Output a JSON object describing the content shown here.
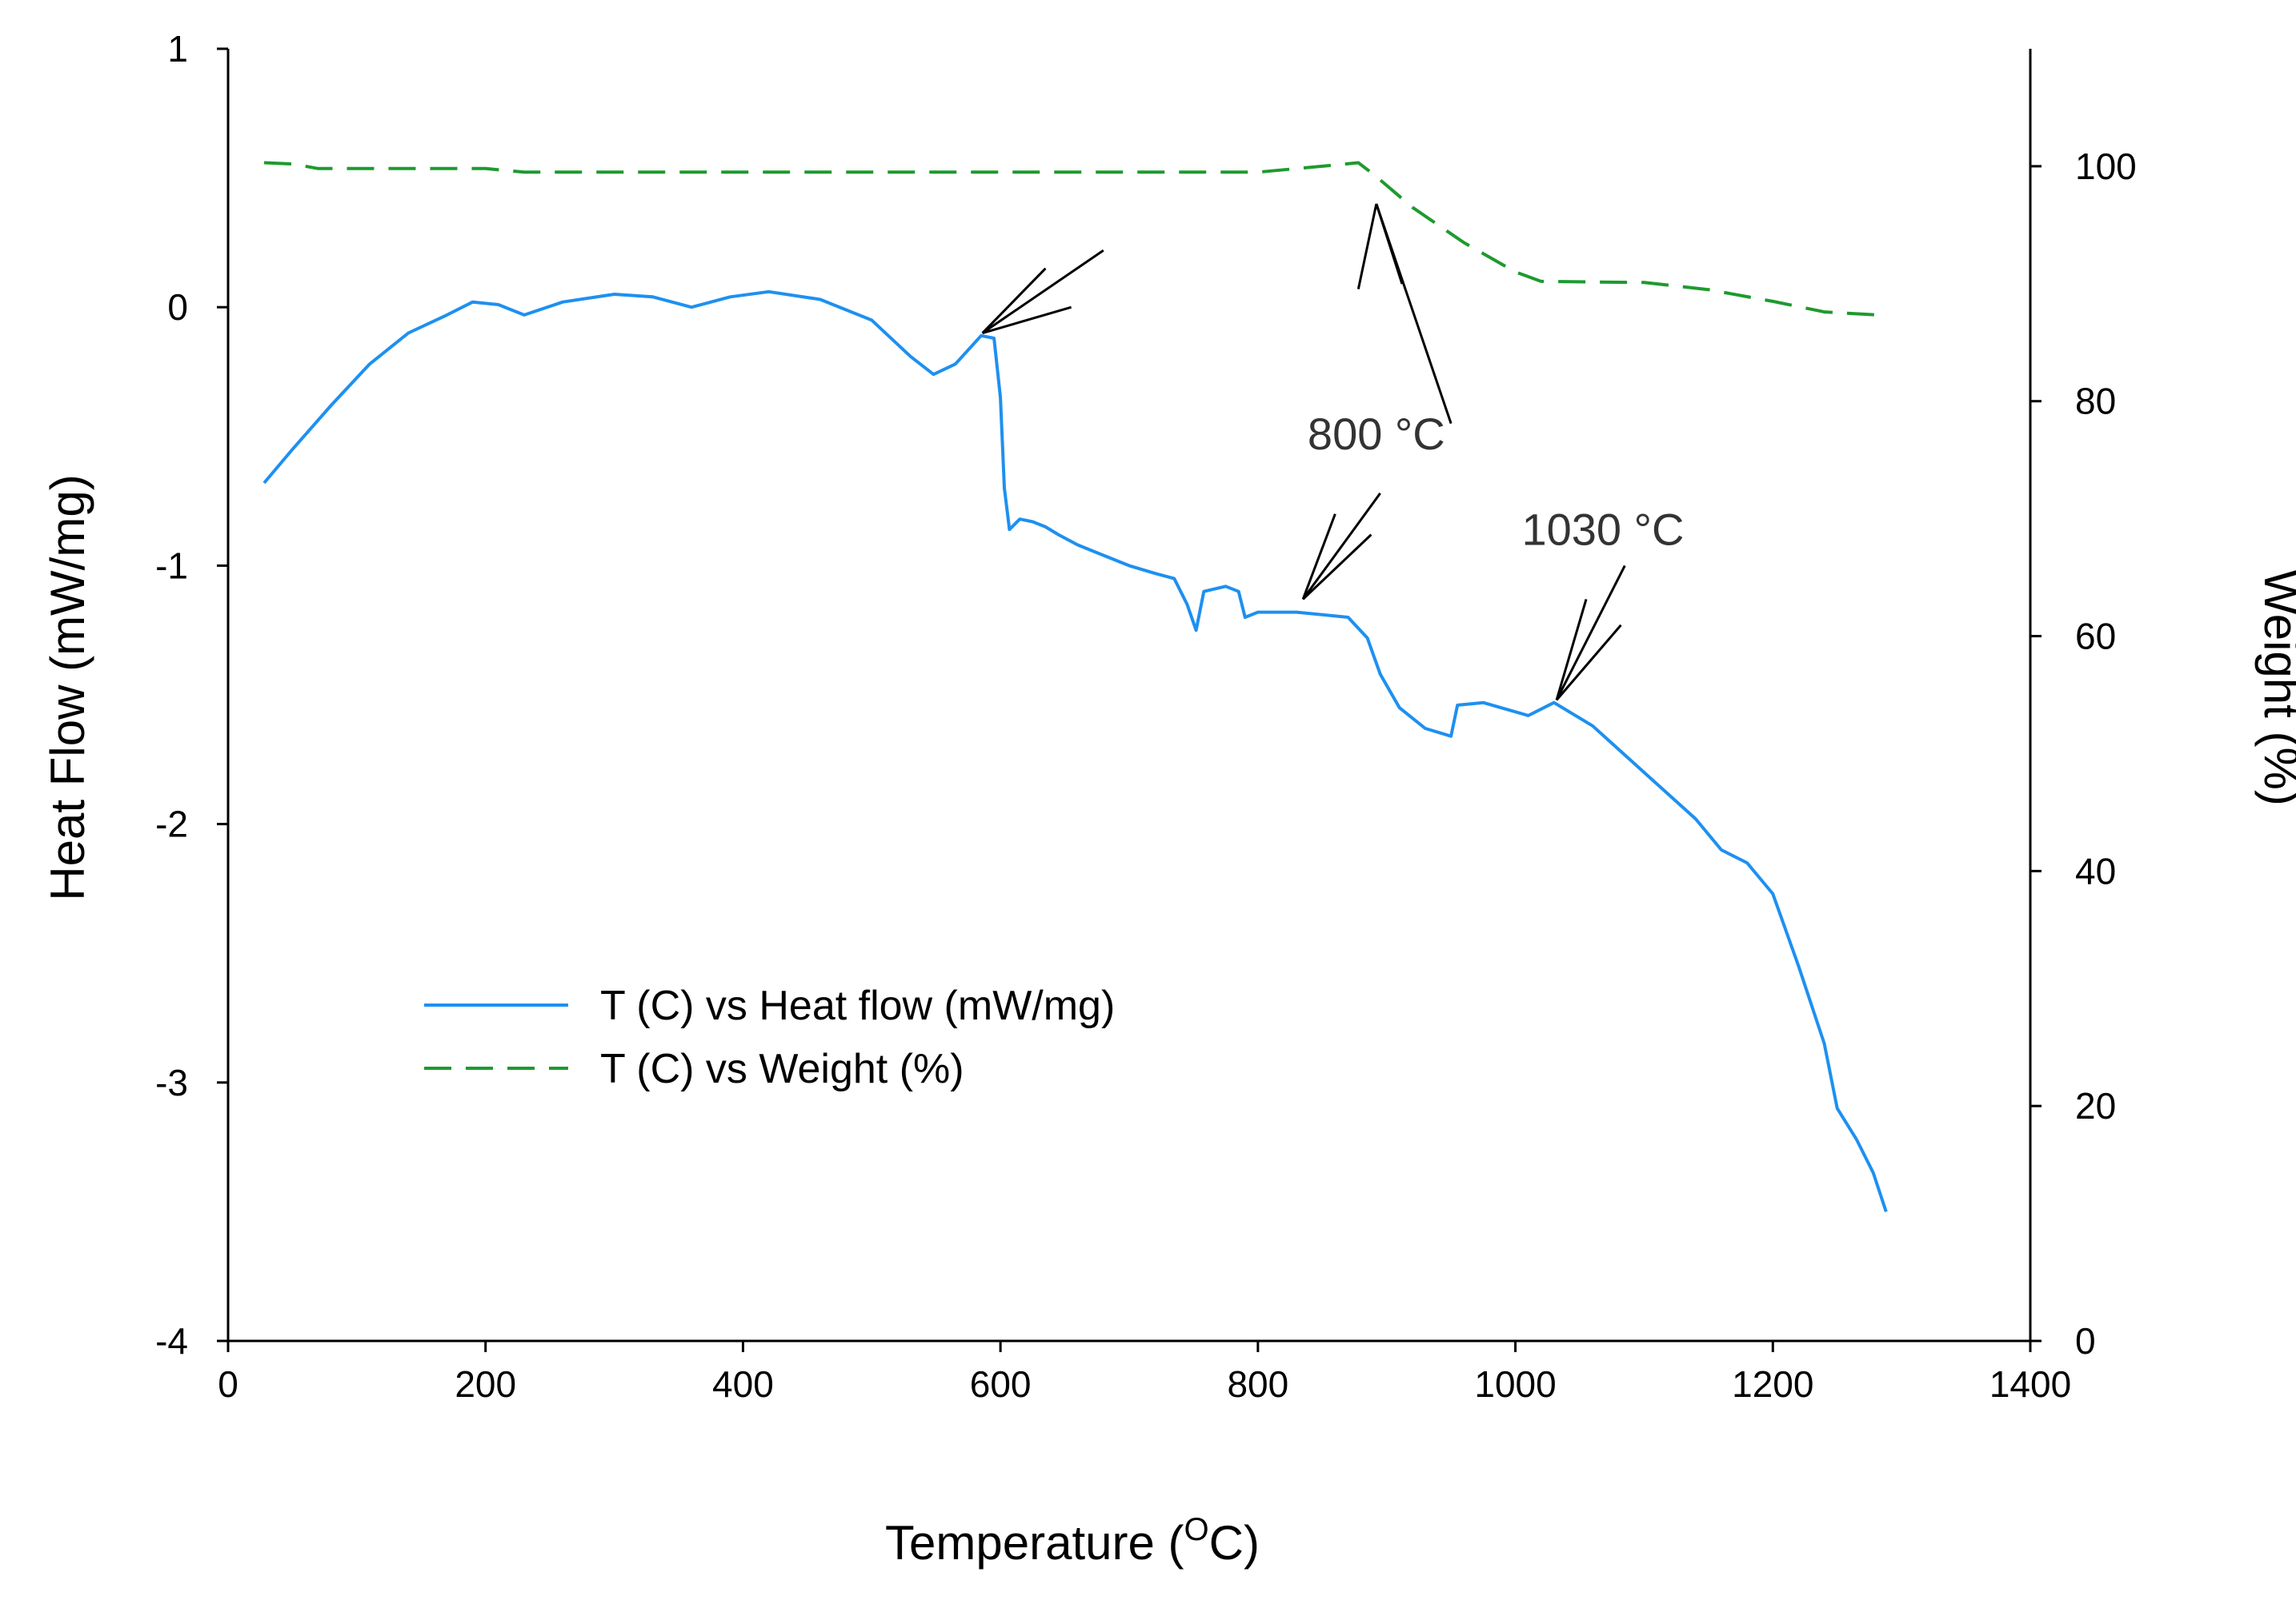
{
  "chart_data": {
    "type": "line",
    "title": "",
    "xlabel": "Temperature (",
    "xlabel_sup": "O",
    "xlabel_tail": "C)",
    "ylabel": "Heat Flow (mW/mg)",
    "y2label": "Weight (%)",
    "xlim": [
      0,
      1400
    ],
    "ylim": [
      -4,
      1
    ],
    "y2lim": [
      0,
      110
    ],
    "x_ticks": [
      "0",
      "200",
      "400",
      "600",
      "800",
      "1000",
      "1200",
      "1400"
    ],
    "y_ticks": [
      "1",
      "0",
      "-1",
      "-2",
      "-3",
      "-4"
    ],
    "y2_ticks": [
      "100",
      "80",
      "60",
      "40",
      "20",
      "0"
    ],
    "colors": {
      "heat": "#1e90f0",
      "weight": "#1e9a2e",
      "annot": "#000000"
    },
    "series": [
      {
        "name": "T (C) vs Heat flow (mW/mg)",
        "axis": "left",
        "style": "solid",
        "points": [
          [
            28,
            -0.68
          ],
          [
            50,
            -0.55
          ],
          [
            80,
            -0.38
          ],
          [
            110,
            -0.22
          ],
          [
            140,
            -0.1
          ],
          [
            170,
            -0.03
          ],
          [
            190,
            0.02
          ],
          [
            210,
            0.01
          ],
          [
            230,
            -0.03
          ],
          [
            260,
            0.02
          ],
          [
            300,
            0.05
          ],
          [
            330,
            0.04
          ],
          [
            360,
            0.0
          ],
          [
            390,
            0.04
          ],
          [
            420,
            0.06
          ],
          [
            460,
            0.03
          ],
          [
            500,
            -0.05
          ],
          [
            530,
            -0.19
          ],
          [
            548,
            -0.26
          ],
          [
            565,
            -0.22
          ],
          [
            585,
            -0.11
          ],
          [
            595,
            -0.12
          ],
          [
            600,
            -0.35
          ],
          [
            603,
            -0.7
          ],
          [
            607,
            -0.86
          ],
          [
            615,
            -0.82
          ],
          [
            625,
            -0.83
          ],
          [
            635,
            -0.85
          ],
          [
            645,
            -0.88
          ],
          [
            660,
            -0.92
          ],
          [
            680,
            -0.96
          ],
          [
            700,
            -1.0
          ],
          [
            720,
            -1.03
          ],
          [
            735,
            -1.05
          ],
          [
            745,
            -1.15
          ],
          [
            752,
            -1.25
          ],
          [
            758,
            -1.1
          ],
          [
            775,
            -1.08
          ],
          [
            785,
            -1.1
          ],
          [
            790,
            -1.2
          ],
          [
            800,
            -1.18
          ],
          [
            830,
            -1.18
          ],
          [
            870,
            -1.2
          ],
          [
            885,
            -1.28
          ],
          [
            895,
            -1.42
          ],
          [
            910,
            -1.55
          ],
          [
            930,
            -1.63
          ],
          [
            950,
            -1.66
          ],
          [
            955,
            -1.54
          ],
          [
            975,
            -1.53
          ],
          [
            1010,
            -1.58
          ],
          [
            1030,
            -1.53
          ],
          [
            1060,
            -1.62
          ],
          [
            1100,
            -1.8
          ],
          [
            1140,
            -1.98
          ],
          [
            1160,
            -2.1
          ],
          [
            1180,
            -2.15
          ],
          [
            1200,
            -2.27
          ],
          [
            1220,
            -2.55
          ],
          [
            1240,
            -2.85
          ],
          [
            1250,
            -3.1
          ],
          [
            1265,
            -3.22
          ],
          [
            1278,
            -3.35
          ],
          [
            1288,
            -3.5
          ]
        ]
      },
      {
        "name": "T (C) vs Weight (%)",
        "axis": "right",
        "style": "dashed",
        "points": [
          [
            28,
            100.3
          ],
          [
            50,
            100.2
          ],
          [
            70,
            99.8
          ],
          [
            200,
            99.8
          ],
          [
            230,
            99.5
          ],
          [
            700,
            99.5
          ],
          [
            800,
            99.5
          ],
          [
            850,
            100.0
          ],
          [
            878,
            100.3
          ],
          [
            890,
            99.3
          ],
          [
            920,
            96.5
          ],
          [
            960,
            93.5
          ],
          [
            1000,
            91.0
          ],
          [
            1020,
            90.2
          ],
          [
            1100,
            90.1
          ],
          [
            1150,
            89.5
          ],
          [
            1200,
            88.5
          ],
          [
            1240,
            87.6
          ],
          [
            1288,
            87.3
          ]
        ]
      }
    ],
    "annotations": [
      {
        "label": "",
        "tip": [
          586,
          -0.1
        ],
        "tails": [
          [
            680,
            0.22
          ],
          [
            655,
            0.0
          ],
          [
            635,
            0.15
          ]
        ]
      },
      {
        "label": "800 °C",
        "tip": [
          892,
          0.4
        ],
        "tails": [
          [
            950,
            -0.45
          ],
          [
            878,
            0.07
          ],
          [
            912,
            0.09
          ]
        ],
        "text_pos": [
          892,
          -0.55
        ]
      },
      {
        "label": "",
        "tip": [
          835,
          -1.13
        ],
        "tails": [
          [
            895,
            -0.72
          ],
          [
            860,
            -0.8
          ],
          [
            888,
            -0.88
          ]
        ]
      },
      {
        "label": "1030 °C",
        "tip": [
          1032,
          -1.52
        ],
        "tails": [
          [
            1085,
            -1.0
          ],
          [
            1055,
            -1.13
          ],
          [
            1082,
            -1.23
          ]
        ],
        "text_pos": [
          1068,
          -0.92
        ]
      }
    ]
  }
}
